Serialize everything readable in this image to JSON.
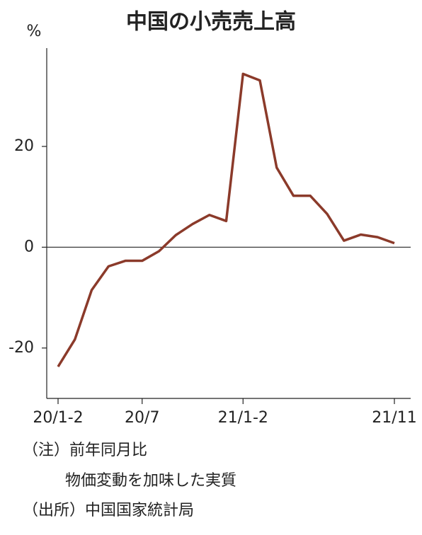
{
  "chart_data": {
    "type": "line",
    "title": "中国の小売売上高",
    "y_label": "%",
    "categories": [
      "20/1-2",
      null,
      null,
      null,
      null,
      "20/7",
      null,
      null,
      null,
      null,
      null,
      "21/1-2",
      null,
      null,
      null,
      null,
      null,
      null,
      null,
      null,
      "21/11"
    ],
    "series": [
      {
        "color": "#8b3a2a",
        "values": [
          -23.7,
          -18.3,
          -8.5,
          -3.8,
          -2.7,
          -2.7,
          -0.8,
          2.4,
          4.6,
          6.4,
          5.2,
          34.4,
          33.1,
          15.8,
          10.2,
          10.2,
          6.6,
          1.3,
          2.5,
          2.0,
          0.8
        ]
      }
    ],
    "ylim": [
      -30,
      39.5
    ],
    "yticks": [
      -20,
      0,
      20
    ],
    "grid": false
  },
  "notes": [
    "（注）前年同月比",
    "物価変動を加味した実質",
    "（出所）中国国家統計局"
  ]
}
